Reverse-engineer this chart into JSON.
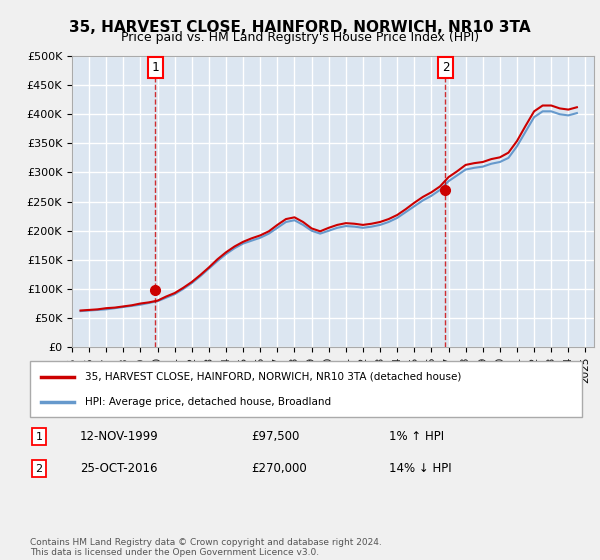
{
  "title": "35, HARVEST CLOSE, HAINFORD, NORWICH, NR10 3TA",
  "subtitle": "Price paid vs. HM Land Registry's House Price Index (HPI)",
  "ylabel_prefix": "£",
  "background_color": "#dce6f1",
  "plot_bg_color": "#dce6f1",
  "grid_color": "#ffffff",
  "ylim": [
    0,
    500000
  ],
  "yticks": [
    0,
    50000,
    100000,
    150000,
    200000,
    250000,
    300000,
    350000,
    400000,
    450000,
    500000
  ],
  "ytick_labels": [
    "£0",
    "£50K",
    "£100K",
    "£150K",
    "£200K",
    "£250K",
    "£300K",
    "£350K",
    "£400K",
    "£450K",
    "£500K"
  ],
  "xlim_start": 1995.0,
  "xlim_end": 2025.5,
  "xtick_years": [
    1995,
    1996,
    1997,
    1998,
    1999,
    2000,
    2001,
    2002,
    2003,
    2004,
    2005,
    2006,
    2007,
    2008,
    2009,
    2010,
    2011,
    2012,
    2013,
    2014,
    2015,
    2016,
    2017,
    2018,
    2019,
    2020,
    2021,
    2022,
    2023,
    2024,
    2025
  ],
  "sale1_x": 1999.87,
  "sale1_y": 97500,
  "sale2_x": 2016.82,
  "sale2_y": 270000,
  "sale1_label": "12-NOV-1999",
  "sale1_price": "£97,500",
  "sale1_hpi": "1% ↑ HPI",
  "sale2_label": "25-OCT-2016",
  "sale2_price": "£270,000",
  "sale2_hpi": "14% ↓ HPI",
  "legend_line1": "35, HARVEST CLOSE, HAINFORD, NORWICH, NR10 3TA (detached house)",
  "legend_line2": "HPI: Average price, detached house, Broadland",
  "line_color_red": "#cc0000",
  "line_color_blue": "#6699cc",
  "footer": "Contains HM Land Registry data © Crown copyright and database right 2024.\nThis data is licensed under the Open Government Licence v3.0.",
  "hpi_broadland": {
    "years": [
      1995.5,
      1996.0,
      1996.5,
      1997.0,
      1997.5,
      1998.0,
      1998.5,
      1999.0,
      1999.5,
      2000.0,
      2000.5,
      2001.0,
      2001.5,
      2002.0,
      2002.5,
      2003.0,
      2003.5,
      2004.0,
      2004.5,
      2005.0,
      2005.5,
      2006.0,
      2006.5,
      2007.0,
      2007.5,
      2008.0,
      2008.5,
      2009.0,
      2009.5,
      2010.0,
      2010.5,
      2011.0,
      2011.5,
      2012.0,
      2012.5,
      2013.0,
      2013.5,
      2014.0,
      2014.5,
      2015.0,
      2015.5,
      2016.0,
      2016.5,
      2017.0,
      2017.5,
      2018.0,
      2018.5,
      2019.0,
      2019.5,
      2020.0,
      2020.5,
      2021.0,
      2021.5,
      2022.0,
      2022.5,
      2023.0,
      2023.5,
      2024.0,
      2024.5
    ],
    "values": [
      62000,
      63000,
      64000,
      65000,
      67000,
      69000,
      71000,
      73000,
      76000,
      79000,
      85000,
      91000,
      100000,
      110000,
      122000,
      135000,
      148000,
      160000,
      170000,
      178000,
      183000,
      188000,
      195000,
      205000,
      215000,
      218000,
      210000,
      200000,
      195000,
      200000,
      205000,
      208000,
      207000,
      205000,
      207000,
      210000,
      215000,
      222000,
      232000,
      242000,
      252000,
      260000,
      270000,
      285000,
      295000,
      305000,
      308000,
      310000,
      315000,
      318000,
      325000,
      345000,
      370000,
      395000,
      405000,
      405000,
      400000,
      398000,
      402000
    ]
  },
  "hpi_property": {
    "years": [
      1995.5,
      1996.0,
      1996.5,
      1997.0,
      1997.5,
      1998.0,
      1998.5,
      1999.0,
      1999.5,
      2000.0,
      2000.5,
      2001.0,
      2001.5,
      2002.0,
      2002.5,
      2003.0,
      2003.5,
      2004.0,
      2004.5,
      2005.0,
      2005.5,
      2006.0,
      2006.5,
      2007.0,
      2007.5,
      2008.0,
      2008.5,
      2009.0,
      2009.5,
      2010.0,
      2010.5,
      2011.0,
      2011.5,
      2012.0,
      2012.5,
      2013.0,
      2013.5,
      2014.0,
      2014.5,
      2015.0,
      2015.5,
      2016.0,
      2016.5,
      2017.0,
      2017.5,
      2018.0,
      2018.5,
      2019.0,
      2019.5,
      2020.0,
      2020.5,
      2021.0,
      2021.5,
      2022.0,
      2022.5,
      2023.0,
      2023.5,
      2024.0,
      2024.5
    ],
    "values": [
      63000,
      64000,
      65000,
      67000,
      68000,
      70000,
      72000,
      75000,
      77000,
      80000,
      87000,
      93000,
      102000,
      112000,
      124000,
      137000,
      151000,
      163000,
      173000,
      181000,
      187000,
      192000,
      199000,
      210000,
      220000,
      223000,
      215000,
      204000,
      199000,
      205000,
      210000,
      213000,
      212000,
      210000,
      212000,
      215000,
      220000,
      227000,
      237000,
      248000,
      258000,
      266000,
      276000,
      292000,
      302000,
      313000,
      316000,
      318000,
      323000,
      326000,
      334000,
      354000,
      380000,
      405000,
      415000,
      415000,
      410000,
      408000,
      412000
    ]
  }
}
